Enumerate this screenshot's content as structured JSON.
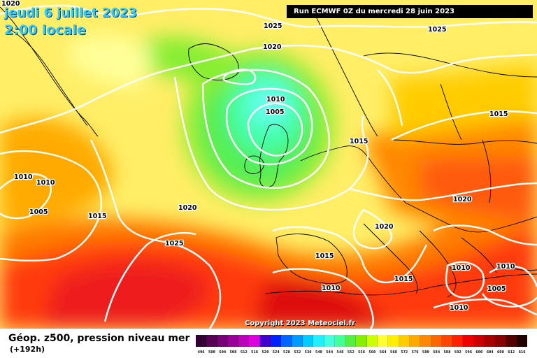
{
  "header": {
    "date": "jeudi 6 juillet 2023",
    "time": "2:00 locale",
    "run": "Run ECMWF 0Z du mercredi 28 juin 2023"
  },
  "footer": {
    "field_title": "Géop. z500, pression niveau mer",
    "lead_time": "(+192h)",
    "copyright": "Copyright 2023 Meteociel.fr"
  },
  "isobar_labels": [
    "1020",
    "1025",
    "1020",
    "1025",
    "1010",
    "1005",
    "1015",
    "1015",
    "1010",
    "1010",
    "1005",
    "1015",
    "1020",
    "1025",
    "1020",
    "1020",
    "1015",
    "1015",
    "1010",
    "1010",
    "1010",
    "1010",
    "1005"
  ],
  "colors": {
    "deep_low": "#66ffee",
    "low": "#55ee77",
    "mid_green": "#99ee33",
    "yellow": "#ffff66",
    "orange": "#ffaa00",
    "red_orange": "#ff5500",
    "red": "#ee2222",
    "isobar": "#ffffff",
    "coast": "#000000"
  },
  "legend_scale": {
    "labels": [
      "496",
      "500",
      "504",
      "508",
      "512",
      "516",
      "520",
      "524",
      "528",
      "532",
      "536",
      "540",
      "544",
      "548",
      "552",
      "556",
      "560",
      "564",
      "568",
      "572",
      "576",
      "580",
      "584",
      "588",
      "592",
      "596",
      "600",
      "604",
      "608",
      "612",
      "616"
    ],
    "colors": [
      "#330033",
      "#550055",
      "#770077",
      "#990099",
      "#bb00bb",
      "#dd00dd",
      "#4400cc",
      "#0022ff",
      "#0066ff",
      "#0099ff",
      "#00ccff",
      "#22eeff",
      "#44ffdd",
      "#44ff99",
      "#55ee44",
      "#88ee00",
      "#ccff00",
      "#ffff33",
      "#ffee00",
      "#ffcc00",
      "#ffaa00",
      "#ff8800",
      "#ff6600",
      "#ff4400",
      "#ff2200",
      "#ee0000",
      "#cc0000",
      "#aa0000",
      "#880000",
      "#550000",
      "#220000"
    ]
  }
}
